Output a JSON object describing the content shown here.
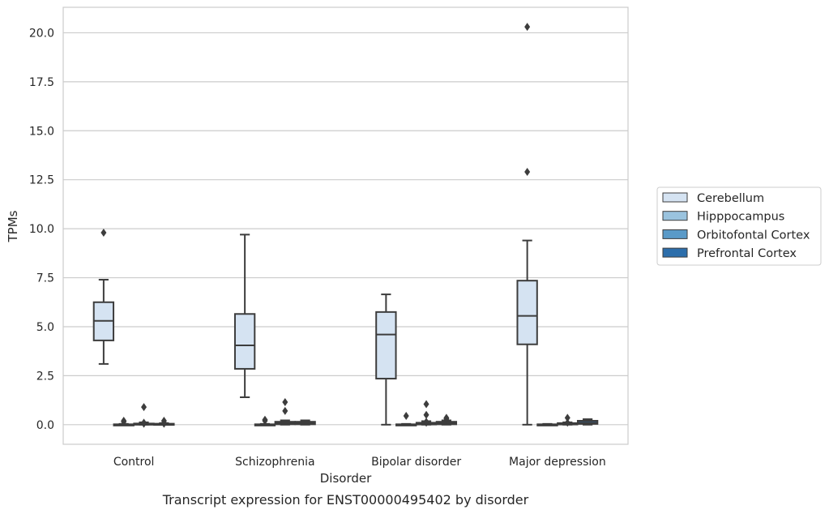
{
  "chart_data": {
    "type": "box",
    "caption": "Transcript expression for ENST00000495402 by disorder",
    "xlabel": "Disorder",
    "ylabel": "TPMs",
    "ylim": [
      -1.0,
      21.3
    ],
    "yticks": [
      "0.0",
      "2.5",
      "5.0",
      "7.5",
      "10.0",
      "12.5",
      "15.0",
      "17.5",
      "20.0"
    ],
    "ytick_values": [
      0,
      2.5,
      5,
      7.5,
      10,
      12.5,
      15,
      17.5,
      20
    ],
    "grid": "horizontal",
    "legend_position": "right",
    "categories": [
      "Control",
      "Schizophrenia",
      "Bipolar disorder",
      "Major depression"
    ],
    "series": [
      {
        "name": "Cerebellum",
        "color": "#d5e3f2",
        "boxes": [
          {
            "whislo": 3.1,
            "q1": 4.3,
            "med": 5.3,
            "q3": 6.25,
            "whishi": 7.4,
            "fliers": [
              9.8
            ]
          },
          {
            "whislo": 1.4,
            "q1": 2.85,
            "med": 4.05,
            "q3": 5.65,
            "whishi": 9.7,
            "fliers": []
          },
          {
            "whislo": 0.0,
            "q1": 2.35,
            "med": 4.6,
            "q3": 5.75,
            "whishi": 6.65,
            "fliers": []
          },
          {
            "whislo": 0.0,
            "q1": 4.1,
            "med": 5.55,
            "q3": 7.35,
            "whishi": 9.4,
            "fliers": [
              12.9,
              20.3
            ]
          }
        ]
      },
      {
        "name": "Hipppocampus",
        "color": "#9ac3de",
        "boxes": [
          {
            "whislo": 0.0,
            "q1": 0.0,
            "med": 0.0,
            "q3": 0.02,
            "whishi": 0.04,
            "fliers": [
              0.15,
              0.2
            ]
          },
          {
            "whislo": 0.0,
            "q1": 0.0,
            "med": 0.0,
            "q3": 0.02,
            "whishi": 0.04,
            "fliers": [
              0.2,
              0.25
            ]
          },
          {
            "whislo": 0.0,
            "q1": 0.0,
            "med": 0.0,
            "q3": 0.02,
            "whishi": 0.04,
            "fliers": [
              0.45
            ]
          },
          {
            "whislo": 0.0,
            "q1": 0.0,
            "med": 0.0,
            "q3": 0.02,
            "whishi": 0.04,
            "fliers": []
          }
        ]
      },
      {
        "name": "Orbitofontal Cortex",
        "color": "#5a9ac8",
        "boxes": [
          {
            "whislo": 0.0,
            "q1": 0.0,
            "med": 0.02,
            "q3": 0.06,
            "whishi": 0.12,
            "fliers": [
              0.05,
              0.1,
              0.9
            ]
          },
          {
            "whislo": 0.0,
            "q1": 0.02,
            "med": 0.08,
            "q3": 0.15,
            "whishi": 0.22,
            "fliers": [
              0.7,
              1.15
            ]
          },
          {
            "whislo": 0.0,
            "q1": 0.01,
            "med": 0.05,
            "q3": 0.1,
            "whishi": 0.18,
            "fliers": [
              0.1,
              0.15,
              0.5,
              1.05
            ]
          },
          {
            "whislo": 0.0,
            "q1": 0.01,
            "med": 0.04,
            "q3": 0.08,
            "whishi": 0.12,
            "fliers": [
              0.1,
              0.35
            ]
          }
        ]
      },
      {
        "name": "Prefrontal Cortex",
        "color": "#2c6eab",
        "boxes": [
          {
            "whislo": 0.0,
            "q1": 0.0,
            "med": 0.02,
            "q3": 0.05,
            "whishi": 0.08,
            "fliers": [
              0.05,
              0.1,
              0.2
            ]
          },
          {
            "whislo": 0.0,
            "q1": 0.02,
            "med": 0.08,
            "q3": 0.15,
            "whishi": 0.22,
            "fliers": []
          },
          {
            "whislo": 0.0,
            "q1": 0.02,
            "med": 0.08,
            "q3": 0.15,
            "whishi": 0.22,
            "fliers": [
              0.3,
              0.35
            ]
          },
          {
            "whislo": 0.0,
            "q1": 0.04,
            "med": 0.1,
            "q3": 0.2,
            "whishi": 0.28,
            "fliers": []
          }
        ]
      }
    ]
  }
}
